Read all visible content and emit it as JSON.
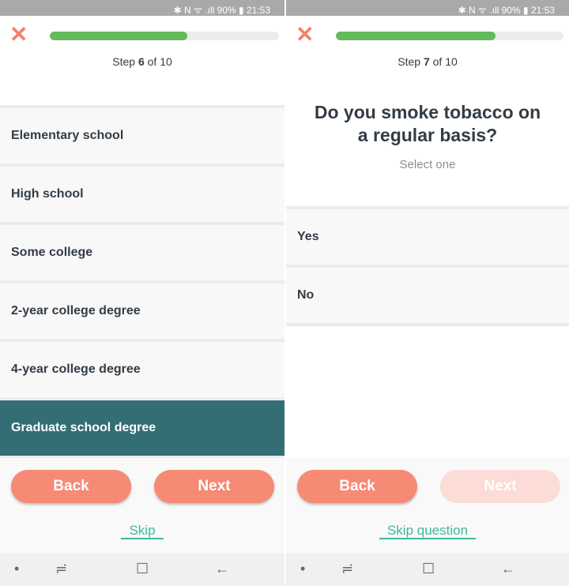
{
  "status": {
    "text": "✱ N ᯤ .ıll 90% ▮ 21:53"
  },
  "screen1": {
    "step_prefix": "Step ",
    "step_current": "6",
    "step_suffix": " of 10",
    "progress": 0.6,
    "options": [
      "Elementary school",
      "High school",
      "Some college",
      "2-year college degree",
      "4-year college degree",
      "Graduate school degree"
    ],
    "selected": "Graduate school degree",
    "back": "Back",
    "next": "Next",
    "skip": "Skip"
  },
  "screen2": {
    "step_prefix": "Step ",
    "step_current": "7",
    "step_suffix": " of 10",
    "progress": 0.7,
    "question": "Do you smoke tobacco on a regular basis?",
    "hint": "Select one",
    "options": [
      "Yes",
      "No"
    ],
    "back": "Back",
    "next": "Next",
    "skip": "Skip question"
  },
  "colors": {
    "accent": "#f68a74",
    "progress": "#63bb5b",
    "selected": "#336e75",
    "link": "#3fb99a"
  }
}
